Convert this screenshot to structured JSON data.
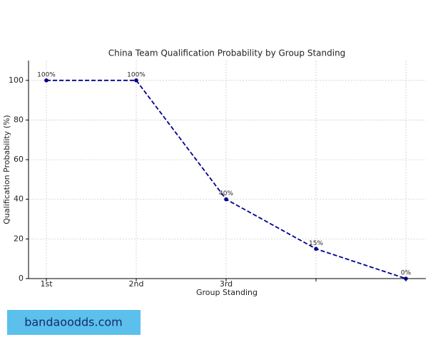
{
  "chart_data": {
    "type": "line",
    "title": "China Team Qualification Probability by Group Standing",
    "x_label": "Group Standing",
    "y_label": "Qualification Probability (%)",
    "categories": [
      "1st",
      "2nd",
      "3rd",
      null,
      null
    ],
    "series": [
      {
        "name": "Qualification Probability",
        "color": "#00008b",
        "values": [
          100,
          100,
          40,
          15,
          0
        ],
        "value_labels": [
          "100%",
          "100%",
          "40%",
          "15%",
          "0%"
        ]
      }
    ],
    "ylim": [
      0,
      110
    ],
    "yticks": [
      0,
      20,
      40,
      60,
      80,
      100
    ],
    "grid": true,
    "line_style": "dashed"
  },
  "watermark": "bandaoodds.com"
}
